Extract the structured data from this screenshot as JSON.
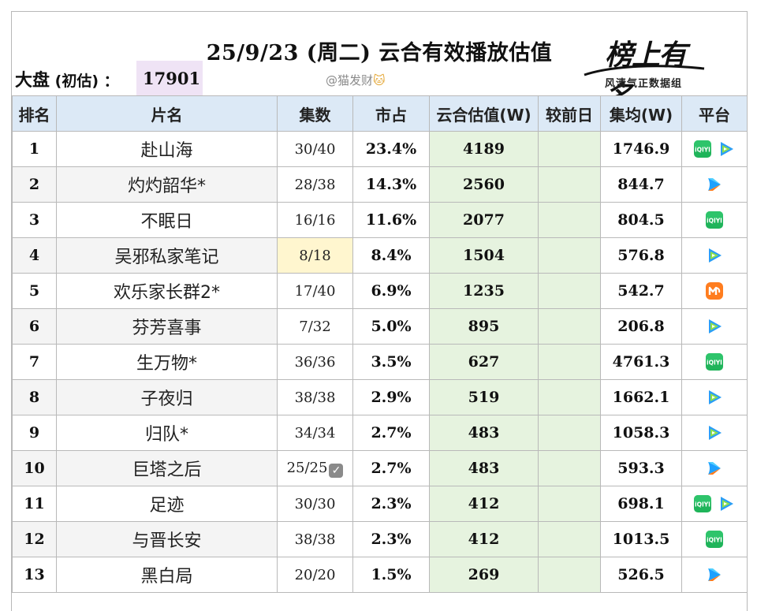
{
  "header": {
    "title": "25/9/23 (周二) 云合有效播放估值",
    "total_label": "大盘",
    "total_sub": " (初估) ：",
    "total_value": "17901",
    "watermark": "@猫发财",
    "logo_script": "榜上有名",
    "logo_tag": "风清气正数据组"
  },
  "table": {
    "columns": [
      "排名",
      "片名",
      "集数",
      "市占",
      "云合估值(W)",
      "较前日",
      "集均(W)",
      "平台"
    ],
    "rows": [
      {
        "rank": "1",
        "name": "赴山海",
        "episodes": "30/40",
        "share": "23.4%",
        "estimate": "4189",
        "change": "",
        "avg": "1746.9",
        "platforms": [
          "iqiyi-icon",
          "tencent-video-icon"
        ]
      },
      {
        "rank": "2",
        "name": "灼灼韶华*",
        "episodes": "28/38",
        "share": "14.3%",
        "estimate": "2560",
        "change": "",
        "avg": "844.7",
        "platforms": [
          "youku-icon"
        ]
      },
      {
        "rank": "3",
        "name": "不眠日",
        "episodes": "16/16",
        "share": "11.6%",
        "estimate": "2077",
        "change": "",
        "avg": "804.5",
        "platforms": [
          "iqiyi-icon"
        ]
      },
      {
        "rank": "4",
        "name": "吴邪私家笔记",
        "episodes": "8/18",
        "share": "8.4%",
        "estimate": "1504",
        "change": "",
        "avg": "576.8",
        "platforms": [
          "tencent-video-icon"
        ]
      },
      {
        "rank": "5",
        "name": "欢乐家长群2*",
        "episodes": "17/40",
        "share": "6.9%",
        "estimate": "1235",
        "change": "",
        "avg": "542.7",
        "platforms": [
          "mango-tv-icon"
        ]
      },
      {
        "rank": "6",
        "name": "芬芳喜事",
        "episodes": "7/32",
        "share": "5.0%",
        "estimate": "895",
        "change": "",
        "avg": "206.8",
        "platforms": [
          "tencent-video-icon"
        ]
      },
      {
        "rank": "7",
        "name": "生万物*",
        "episodes": "36/36",
        "share": "3.5%",
        "estimate": "627",
        "change": "",
        "avg": "4761.3",
        "platforms": [
          "iqiyi-icon"
        ]
      },
      {
        "rank": "8",
        "name": "子夜归",
        "episodes": "38/38",
        "share": "2.9%",
        "estimate": "519",
        "change": "",
        "avg": "1662.1",
        "platforms": [
          "tencent-video-icon"
        ]
      },
      {
        "rank": "9",
        "name": "归队*",
        "episodes": "34/34",
        "share": "2.7%",
        "estimate": "483",
        "change": "",
        "avg": "1058.3",
        "platforms": [
          "tencent-video-icon"
        ]
      },
      {
        "rank": "10",
        "name": "巨塔之后",
        "episodes": "25/25",
        "share": "2.7%",
        "estimate": "483",
        "change": "",
        "avg": "593.3",
        "platforms": [
          "youku-icon"
        ],
        "completed": true
      },
      {
        "rank": "11",
        "name": "足迹",
        "episodes": "30/30",
        "share": "2.3%",
        "estimate": "412",
        "change": "",
        "avg": "698.1",
        "platforms": [
          "iqiyi-icon",
          "tencent-video-icon"
        ]
      },
      {
        "rank": "12",
        "name": "与晋长安",
        "episodes": "38/38",
        "share": "2.3%",
        "estimate": "412",
        "change": "",
        "avg": "1013.5",
        "platforms": [
          "iqiyi-icon"
        ]
      },
      {
        "rank": "13",
        "name": "黑白局",
        "episodes": "20/20",
        "share": "1.5%",
        "estimate": "269",
        "change": "",
        "avg": "526.5",
        "platforms": [
          "youku-icon"
        ]
      }
    ],
    "highlight_episode_row": "4"
  },
  "colors": {
    "header_bg": "#dce9f6",
    "estimate_bg": "#e6f3df",
    "total_bg": "#efe3f5",
    "episode_highlight": "#fff6cf"
  }
}
